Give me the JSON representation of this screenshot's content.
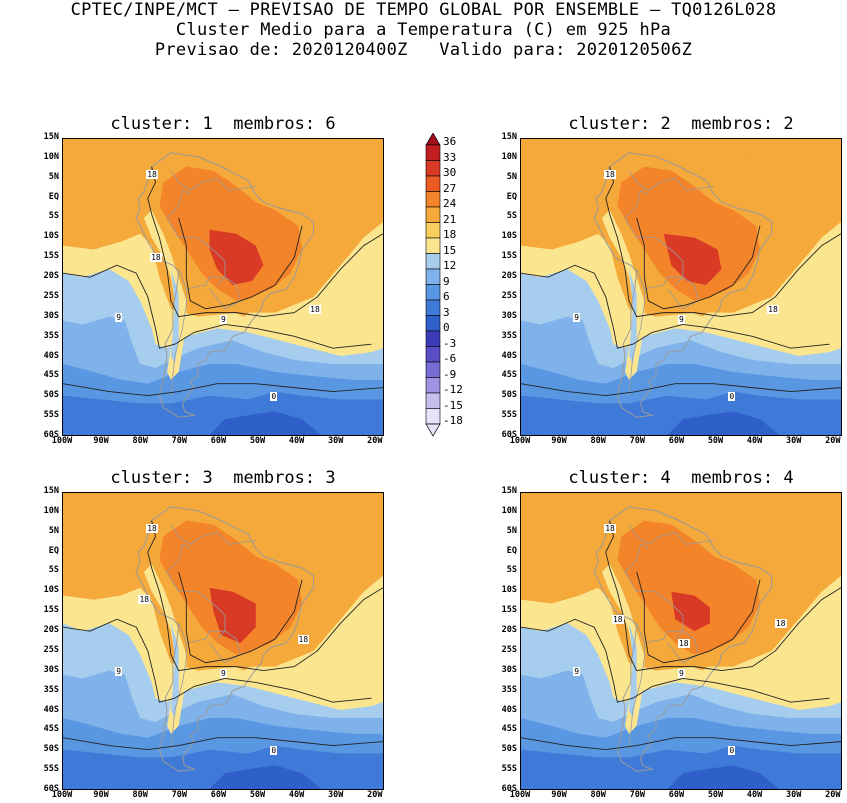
{
  "header": {
    "line1": "CPTEC/INPE/MCT – PREVISAO DE TEMPO GLOBAL POR ENSEMBLE – TQ0126L028",
    "line2": "Cluster Medio para a Temperatura (C) em 925 hPa",
    "line3": "Previsao de: 2020120400Z   Valido para: 2020120506Z"
  },
  "panels": [
    {
      "title": "cluster: 1  membros: 6"
    },
    {
      "title": "cluster: 2  membros: 2"
    },
    {
      "title": "cluster: 3  membros: 3"
    },
    {
      "title": "cluster: 4  membros: 4"
    }
  ],
  "lat_ticks": [
    "15N",
    "10N",
    "5N",
    "EQ",
    "5S",
    "10S",
    "15S",
    "20S",
    "25S",
    "30S",
    "35S",
    "40S",
    "45S",
    "50S",
    "55S",
    "60S"
  ],
  "lon_ticks": [
    "100W",
    "90W",
    "80W",
    "70W",
    "60W",
    "50W",
    "40W",
    "30W",
    "20W"
  ],
  "colorbar": {
    "labels": [
      "36",
      "33",
      "30",
      "27",
      "24",
      "21",
      "18",
      "15",
      "12",
      "9",
      "6",
      "3",
      "0",
      "-3",
      "-6",
      "-9",
      "-12",
      "-15",
      "-18"
    ],
    "colors": [
      "#a10f1a",
      "#c22020",
      "#d83a26",
      "#ea5a22",
      "#f4842a",
      "#f5a93a",
      "#f8cf5c",
      "#fbe58f",
      "#a7cdee",
      "#7fb2ea",
      "#5a97e3",
      "#3f7ad8",
      "#2f5fc9",
      "#3b3bb8",
      "#5a4ec7",
      "#7a6cd5",
      "#9e92e2",
      "#c6bdef",
      "#e7e1fa"
    ]
  },
  "contour_labels": {
    "c1": [
      "18",
      "18",
      "18",
      "9",
      "9",
      "0"
    ],
    "c2": [
      "18",
      "18",
      "9",
      "9",
      "0"
    ],
    "c3": [
      "18",
      "18",
      "18",
      "9",
      "9",
      "0"
    ],
    "c4": [
      "18",
      "18",
      "18",
      "18",
      "9",
      "9",
      "0"
    ]
  }
}
